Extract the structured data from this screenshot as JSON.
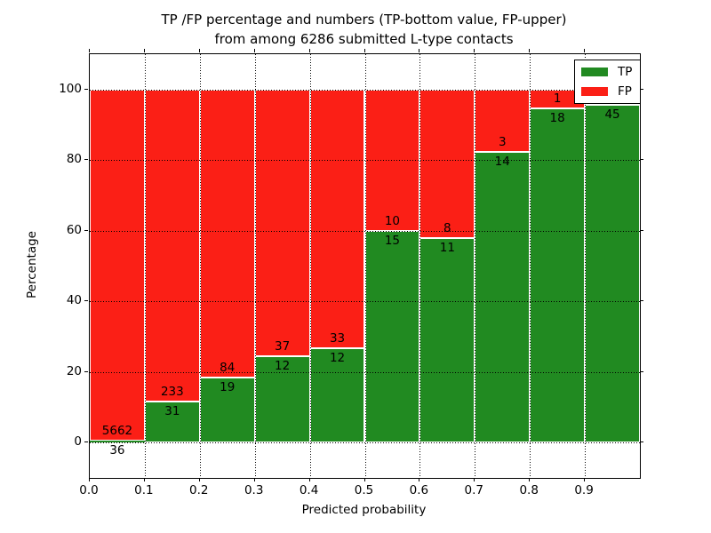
{
  "chart": {
    "title_line1": "TP /FP percentage and numbers (TP-bottom value, FP-upper)",
    "title_line2": "from among 6286 submitted L-type contacts",
    "xlabel": "Predicted probability",
    "ylabel": "Percentage"
  },
  "legend": {
    "items": [
      {
        "label": "TP",
        "color": "#218a21"
      },
      {
        "label": "FP",
        "color": "#fb1f16"
      }
    ]
  },
  "chart_data": {
    "type": "bar",
    "stacked": true,
    "title": "TP /FP percentage and numbers (TP-bottom value, FP-upper) from among 6286 submitted L-type contacts",
    "xlabel": "Predicted probability",
    "ylabel": "Percentage",
    "xlim": [
      0.0,
      1.0
    ],
    "ylim": [
      -10,
      110
    ],
    "grid": true,
    "legend_position": "upper right",
    "x_tick_labels": [
      "0.0",
      "0.1",
      "0.2",
      "0.3",
      "0.4",
      "0.5",
      "0.6",
      "0.7",
      "0.8",
      "0.9"
    ],
    "y_ticks": [
      0,
      20,
      40,
      60,
      80,
      100
    ],
    "total_contacts": 6286,
    "bins": [
      {
        "range": "0.0-0.1",
        "tp": 36,
        "fp": 5662,
        "tp_pct": 0.63
      },
      {
        "range": "0.1-0.2",
        "tp": 31,
        "fp": 233,
        "tp_pct": 11.74
      },
      {
        "range": "0.2-0.3",
        "tp": 19,
        "fp": 84,
        "tp_pct": 18.45
      },
      {
        "range": "0.3-0.4",
        "tp": 12,
        "fp": 37,
        "tp_pct": 24.49
      },
      {
        "range": "0.4-0.5",
        "tp": 12,
        "fp": 33,
        "tp_pct": 26.67
      },
      {
        "range": "0.5-0.6",
        "tp": 15,
        "fp": 10,
        "tp_pct": 60.0
      },
      {
        "range": "0.6-0.7",
        "tp": 11,
        "fp": 8,
        "tp_pct": 57.89
      },
      {
        "range": "0.7-0.8",
        "tp": 14,
        "fp": 3,
        "tp_pct": 82.35
      },
      {
        "range": "0.8-0.9",
        "tp": 18,
        "fp": 1,
        "tp_pct": 94.74
      },
      {
        "range": "0.9-1.0",
        "tp": 45,
        "fp": null,
        "tp_pct": 95.74
      }
    ],
    "series": [
      {
        "name": "TP",
        "color": "#218a21",
        "values": [
          36,
          31,
          19,
          12,
          12,
          15,
          11,
          14,
          18,
          45
        ]
      },
      {
        "name": "FP",
        "color": "#fb1f16",
        "values": [
          5662,
          233,
          84,
          37,
          33,
          10,
          8,
          3,
          1,
          null
        ]
      }
    ],
    "colors": {
      "tp": "#218a21",
      "fp": "#fb1f16",
      "grid": "#000000",
      "background": "#ffffff"
    }
  }
}
